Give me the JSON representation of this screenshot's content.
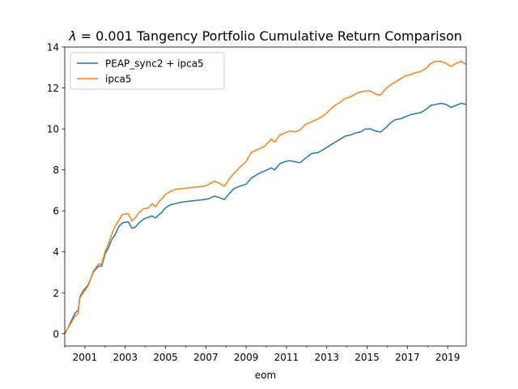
{
  "chart_data": {
    "type": "line",
    "title": "λ = 0.001   Tangency Portfolio Cumulative Return Comparison",
    "title_prefix": "λ",
    "title_rest": " = 0.001   Tangency Portfolio Cumulative Return Comparison",
    "xlabel": "eom",
    "ylabel": "",
    "xlim": [
      "2000-01-31",
      "2019-12-31"
    ],
    "ylim": [
      -0.6,
      14.0
    ],
    "x_ticks": [
      "2001",
      "2003",
      "2005",
      "2007",
      "2009",
      "2011",
      "2013",
      "2015",
      "2017",
      "2019"
    ],
    "y_ticks": [
      0,
      2,
      4,
      6,
      8,
      10,
      12,
      14
    ],
    "grid": false,
    "legend_position": "top-left",
    "series": [
      {
        "name": "PEAP_sync2 + ipca5",
        "color": "#1f77b4",
        "points": [
          [
            "2000-01",
            0.0
          ],
          [
            "2000-03",
            0.3
          ],
          [
            "2000-05",
            0.65
          ],
          [
            "2000-07",
            1.0
          ],
          [
            "2000-09",
            1.15
          ],
          [
            "2000-10",
            1.8
          ],
          [
            "2000-12",
            2.1
          ],
          [
            "2001-03",
            2.4
          ],
          [
            "2001-06",
            3.0
          ],
          [
            "2001-09",
            3.3
          ],
          [
            "2001-11",
            3.3
          ],
          [
            "2002-01",
            3.9
          ],
          [
            "2002-03",
            4.2
          ],
          [
            "2002-05",
            4.6
          ],
          [
            "2002-07",
            4.85
          ],
          [
            "2002-09",
            5.2
          ],
          [
            "2002-11",
            5.4
          ],
          [
            "2003-01",
            5.45
          ],
          [
            "2003-03",
            5.45
          ],
          [
            "2003-05",
            5.15
          ],
          [
            "2003-07",
            5.2
          ],
          [
            "2003-09",
            5.4
          ],
          [
            "2003-12",
            5.6
          ],
          [
            "2004-03",
            5.7
          ],
          [
            "2004-05",
            5.75
          ],
          [
            "2004-07",
            5.65
          ],
          [
            "2004-09",
            5.8
          ],
          [
            "2004-11",
            5.95
          ],
          [
            "2005-01",
            6.15
          ],
          [
            "2005-04",
            6.3
          ],
          [
            "2005-07",
            6.35
          ],
          [
            "2005-10",
            6.42
          ],
          [
            "2006-01",
            6.45
          ],
          [
            "2006-06",
            6.5
          ],
          [
            "2006-12",
            6.55
          ],
          [
            "2007-03",
            6.6
          ],
          [
            "2007-06",
            6.72
          ],
          [
            "2007-09",
            6.65
          ],
          [
            "2007-12",
            6.55
          ],
          [
            "2008-03",
            6.85
          ],
          [
            "2008-06",
            7.1
          ],
          [
            "2008-09",
            7.2
          ],
          [
            "2009-01",
            7.3
          ],
          [
            "2009-04",
            7.6
          ],
          [
            "2009-08",
            7.8
          ],
          [
            "2009-12",
            7.95
          ],
          [
            "2010-04",
            8.1
          ],
          [
            "2010-06",
            8.0
          ],
          [
            "2010-09",
            8.3
          ],
          [
            "2010-12",
            8.4
          ],
          [
            "2011-03",
            8.45
          ],
          [
            "2011-06",
            8.4
          ],
          [
            "2011-09",
            8.35
          ],
          [
            "2011-12",
            8.55
          ],
          [
            "2012-04",
            8.8
          ],
          [
            "2012-08",
            8.85
          ],
          [
            "2012-12",
            9.05
          ],
          [
            "2013-03",
            9.2
          ],
          [
            "2013-06",
            9.35
          ],
          [
            "2013-09",
            9.5
          ],
          [
            "2013-12",
            9.65
          ],
          [
            "2014-03",
            9.7
          ],
          [
            "2014-06",
            9.8
          ],
          [
            "2014-09",
            9.85
          ],
          [
            "2014-12",
            10.0
          ],
          [
            "2015-03",
            10.0
          ],
          [
            "2015-06",
            9.9
          ],
          [
            "2015-09",
            9.85
          ],
          [
            "2015-12",
            10.05
          ],
          [
            "2016-03",
            10.3
          ],
          [
            "2016-06",
            10.45
          ],
          [
            "2016-09",
            10.5
          ],
          [
            "2016-12",
            10.6
          ],
          [
            "2017-03",
            10.7
          ],
          [
            "2017-06",
            10.75
          ],
          [
            "2017-09",
            10.8
          ],
          [
            "2017-12",
            10.95
          ],
          [
            "2018-03",
            11.15
          ],
          [
            "2018-06",
            11.2
          ],
          [
            "2018-09",
            11.25
          ],
          [
            "2018-12",
            11.2
          ],
          [
            "2019-03",
            11.05
          ],
          [
            "2019-06",
            11.15
          ],
          [
            "2019-09",
            11.25
          ],
          [
            "2019-12",
            11.2
          ]
        ]
      },
      {
        "name": "ipca5",
        "color": "#ff7f0e",
        "points": [
          [
            "2000-01",
            0.0
          ],
          [
            "2000-03",
            0.3
          ],
          [
            "2000-05",
            0.55
          ],
          [
            "2000-07",
            0.85
          ],
          [
            "2000-09",
            1.0
          ],
          [
            "2000-10",
            1.75
          ],
          [
            "2000-12",
            2.0
          ],
          [
            "2001-03",
            2.35
          ],
          [
            "2001-06",
            3.05
          ],
          [
            "2001-09",
            3.4
          ],
          [
            "2001-11",
            3.4
          ],
          [
            "2002-01",
            4.0
          ],
          [
            "2002-03",
            4.4
          ],
          [
            "2002-05",
            4.85
          ],
          [
            "2002-07",
            5.25
          ],
          [
            "2002-09",
            5.5
          ],
          [
            "2002-11",
            5.8
          ],
          [
            "2003-01",
            5.85
          ],
          [
            "2003-03",
            5.85
          ],
          [
            "2003-05",
            5.5
          ],
          [
            "2003-07",
            5.65
          ],
          [
            "2003-09",
            5.9
          ],
          [
            "2003-12",
            6.1
          ],
          [
            "2004-03",
            6.15
          ],
          [
            "2004-05",
            6.35
          ],
          [
            "2004-07",
            6.2
          ],
          [
            "2004-09",
            6.45
          ],
          [
            "2004-11",
            6.6
          ],
          [
            "2005-01",
            6.8
          ],
          [
            "2005-04",
            6.95
          ],
          [
            "2005-07",
            7.05
          ],
          [
            "2005-10",
            7.08
          ],
          [
            "2006-01",
            7.1
          ],
          [
            "2006-06",
            7.15
          ],
          [
            "2006-12",
            7.2
          ],
          [
            "2007-03",
            7.3
          ],
          [
            "2007-06",
            7.45
          ],
          [
            "2007-09",
            7.35
          ],
          [
            "2007-12",
            7.2
          ],
          [
            "2008-03",
            7.55
          ],
          [
            "2008-06",
            7.85
          ],
          [
            "2008-09",
            8.1
          ],
          [
            "2009-01",
            8.4
          ],
          [
            "2009-04",
            8.85
          ],
          [
            "2009-08",
            9.0
          ],
          [
            "2009-12",
            9.15
          ],
          [
            "2010-04",
            9.5
          ],
          [
            "2010-06",
            9.35
          ],
          [
            "2010-09",
            9.7
          ],
          [
            "2010-12",
            9.8
          ],
          [
            "2011-03",
            9.9
          ],
          [
            "2011-06",
            9.85
          ],
          [
            "2011-09",
            9.95
          ],
          [
            "2011-12",
            10.2
          ],
          [
            "2012-04",
            10.35
          ],
          [
            "2012-08",
            10.5
          ],
          [
            "2012-12",
            10.7
          ],
          [
            "2013-03",
            10.95
          ],
          [
            "2013-06",
            11.15
          ],
          [
            "2013-09",
            11.3
          ],
          [
            "2013-12",
            11.5
          ],
          [
            "2014-03",
            11.55
          ],
          [
            "2014-06",
            11.7
          ],
          [
            "2014-09",
            11.8
          ],
          [
            "2014-12",
            11.85
          ],
          [
            "2015-03",
            11.85
          ],
          [
            "2015-06",
            11.7
          ],
          [
            "2015-09",
            11.65
          ],
          [
            "2015-12",
            11.95
          ],
          [
            "2016-03",
            12.15
          ],
          [
            "2016-06",
            12.3
          ],
          [
            "2016-09",
            12.45
          ],
          [
            "2016-12",
            12.6
          ],
          [
            "2017-03",
            12.65
          ],
          [
            "2017-06",
            12.75
          ],
          [
            "2017-09",
            12.8
          ],
          [
            "2017-12",
            12.95
          ],
          [
            "2018-03",
            13.2
          ],
          [
            "2018-06",
            13.3
          ],
          [
            "2018-09",
            13.3
          ],
          [
            "2018-12",
            13.2
          ],
          [
            "2019-03",
            13.05
          ],
          [
            "2019-06",
            13.2
          ],
          [
            "2019-09",
            13.3
          ],
          [
            "2019-12",
            13.15
          ]
        ]
      }
    ]
  }
}
